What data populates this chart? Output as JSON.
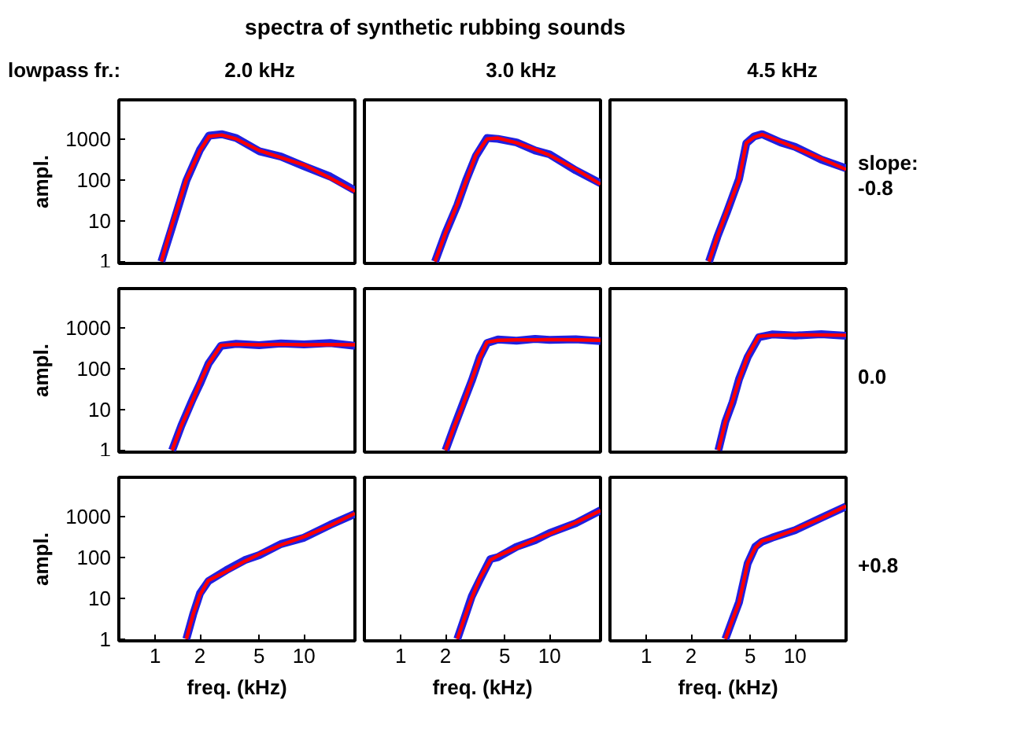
{
  "chart_data": [
    {
      "type": "line",
      "subtitle": "2.0 kHz",
      "annotations": [
        "lowpass fr.:"
      ],
      "ylabel": "ampl.",
      "log": "xy",
      "xlim": [
        0.57,
        22
      ],
      "ylim": [
        0.9,
        9000
      ],
      "xticks": [
        1,
        2,
        5,
        10
      ],
      "yticks": [
        1,
        10,
        100,
        1000
      ],
      "tick_labels": "y",
      "x": [
        1.1,
        1.3,
        1.62,
        2.0,
        2.3,
        2.8,
        3.5,
        5,
        7,
        10,
        15,
        22
      ],
      "series": [
        {
          "color": "#2020e0",
          "values": [
            1,
            7,
            95,
            540,
            1200,
            1300,
            1050,
            500,
            370,
            215,
            120,
            55
          ]
        },
        {
          "color": "#ff0000",
          "values": [
            1,
            8,
            100,
            520,
            1150,
            1250,
            1000,
            520,
            350,
            230,
            110,
            52
          ]
        }
      ]
    },
    {
      "type": "line",
      "title": "spectra of synthetic rubbing sounds",
      "subtitle": "3.0 kHz",
      "log": "xy",
      "xlim": [
        0.57,
        22
      ],
      "ylim": [
        0.9,
        9000
      ],
      "xticks": [
        1,
        2,
        5,
        10
      ],
      "yticks": [
        1,
        10,
        100,
        1000
      ],
      "tick_labels": false,
      "x": [
        1.7,
        2.0,
        2.4,
        2.77,
        3.2,
        3.8,
        4.5,
        6,
        8,
        10,
        15,
        22
      ],
      "series": [
        {
          "color": "#2020e0",
          "values": [
            1,
            5,
            24,
            105,
            380,
            1050,
            1000,
            820,
            520,
            420,
            170,
            82
          ]
        },
        {
          "color": "#ff0000",
          "values": [
            1,
            5,
            25,
            100,
            400,
            1000,
            1050,
            800,
            550,
            400,
            180,
            78
          ]
        }
      ]
    },
    {
      "type": "line",
      "subtitle": "4.5 kHz",
      "annotations": [
        "slope:",
        "-0.8"
      ],
      "log": "xy",
      "xlim": [
        0.57,
        22
      ],
      "ylim": [
        0.9,
        9000
      ],
      "xticks": [
        1,
        2,
        5,
        10
      ],
      "yticks": [
        1,
        10,
        100,
        1000
      ],
      "tick_labels": false,
      "x": [
        2.64,
        3.0,
        3.5,
        4.2,
        4.7,
        5.3,
        6.0,
        8,
        10,
        15,
        22
      ],
      "series": [
        {
          "color": "#2020e0",
          "values": [
            1,
            4,
            17,
            105,
            780,
            1150,
            1300,
            820,
            640,
            310,
            190
          ]
        },
        {
          "color": "#ff0000",
          "values": [
            1,
            4,
            18,
            100,
            800,
            1100,
            1280,
            850,
            610,
            330,
            178
          ]
        }
      ]
    },
    {
      "type": "line",
      "ylabel": "ampl.",
      "log": "xy",
      "xlim": [
        0.57,
        22
      ],
      "ylim": [
        0.9,
        9000
      ],
      "xticks": [
        1,
        2,
        5,
        10
      ],
      "yticks": [
        1,
        10,
        100,
        1000
      ],
      "tick_labels": "y",
      "x": [
        1.3,
        1.5,
        1.79,
        2.0,
        2.28,
        2.77,
        3.5,
        5,
        7,
        10,
        15,
        22
      ],
      "series": [
        {
          "color": "#2020e0",
          "values": [
            1,
            4,
            18,
            42,
            130,
            360,
            400,
            370,
            410,
            390,
            420,
            360
          ]
        },
        {
          "color": "#ff0000",
          "values": [
            1,
            4,
            17,
            45,
            128,
            370,
            390,
            380,
            390,
            380,
            385,
            380
          ]
        }
      ]
    },
    {
      "type": "line",
      "log": "xy",
      "xlim": [
        0.57,
        22
      ],
      "ylim": [
        0.9,
        9000
      ],
      "xticks": [
        1,
        2,
        5,
        10
      ],
      "yticks": [
        1,
        10,
        100,
        1000
      ],
      "tick_labels": false,
      "x": [
        2.0,
        2.3,
        2.6,
        3.0,
        3.4,
        3.8,
        4.5,
        6,
        8,
        10,
        15,
        22
      ],
      "series": [
        {
          "color": "#2020e0",
          "values": [
            1,
            4,
            13,
            50,
            190,
            420,
            510,
            480,
            530,
            500,
            520,
            470
          ]
        },
        {
          "color": "#ff0000",
          "values": [
            1,
            4,
            12,
            52,
            180,
            440,
            490,
            500,
            500,
            510,
            500,
            490
          ]
        }
      ]
    },
    {
      "type": "line",
      "annotations": [
        "0.0"
      ],
      "log": "xy",
      "xlim": [
        0.57,
        22
      ],
      "ylim": [
        0.9,
        9000
      ],
      "xticks": [
        1,
        2,
        5,
        10
      ],
      "yticks": [
        1,
        10,
        100,
        1000
      ],
      "tick_labels": false,
      "x": [
        3.05,
        3.4,
        3.8,
        4.2,
        4.8,
        5.7,
        7,
        10,
        15,
        22
      ],
      "series": [
        {
          "color": "#2020e0",
          "values": [
            1,
            5,
            15,
            55,
            190,
            580,
            680,
            640,
            690,
            630
          ]
        },
        {
          "color": "#ff0000",
          "values": [
            1,
            5,
            16,
            52,
            200,
            610,
            650,
            660,
            660,
            650
          ]
        }
      ]
    },
    {
      "type": "line",
      "ylabel": "ampl.",
      "xlabel": "freq. (kHz)",
      "log": "xy",
      "xlim": [
        0.57,
        22
      ],
      "ylim": [
        0.9,
        9000
      ],
      "xticks": [
        1,
        2,
        5,
        10
      ],
      "yticks": [
        1,
        10,
        100,
        1000
      ],
      "x": [
        1.62,
        1.8,
        2.0,
        2.28,
        3,
        4,
        5,
        7,
        10,
        15,
        22
      ],
      "series": [
        {
          "color": "#2020e0",
          "values": [
            1,
            4,
            13,
            26,
            48,
            85,
            112,
            210,
            300,
            620,
            1150
          ]
        },
        {
          "color": "#ff0000",
          "values": [
            1,
            4,
            12,
            27,
            45,
            80,
            118,
            200,
            316,
            600,
            1180
          ]
        }
      ]
    },
    {
      "type": "line",
      "xlabel": "freq. (kHz)",
      "log": "xy",
      "xlim": [
        0.57,
        22
      ],
      "ylim": [
        0.9,
        9000
      ],
      "xticks": [
        1,
        2,
        5,
        10
      ],
      "yticks": [
        1,
        10,
        100,
        1000
      ],
      "tick_labels": "x",
      "x": [
        2.4,
        2.7,
        3.0,
        3.4,
        4.0,
        4.5,
        6,
        8,
        10,
        15,
        22
      ],
      "series": [
        {
          "color": "#2020e0",
          "values": [
            1,
            3.5,
            11,
            28,
            90,
            100,
            180,
            260,
            390,
            680,
            1400
          ]
        },
        {
          "color": "#ff0000",
          "values": [
            1,
            3.5,
            10,
            30,
            85,
            108,
            170,
            270,
            370,
            700,
            1390
          ]
        }
      ]
    },
    {
      "type": "line",
      "xlabel": "freq. (kHz)",
      "annotations": [
        "+0.8"
      ],
      "log": "xy",
      "xlim": [
        0.57,
        22
      ],
      "ylim": [
        0.9,
        9000
      ],
      "xticks": [
        1,
        2,
        5,
        10
      ],
      "yticks": [
        1,
        10,
        100,
        1000
      ],
      "tick_labels": "x",
      "x": [
        3.4,
        3.8,
        4.2,
        4.8,
        5.4,
        6.0,
        7,
        10,
        15,
        22
      ],
      "series": [
        {
          "color": "#2020e0",
          "values": [
            1,
            3,
            8,
            70,
            180,
            240,
            300,
            460,
            920,
            1750
          ]
        },
        {
          "color": "#ff0000",
          "values": [
            1,
            3,
            7.8,
            72,
            170,
            250,
            290,
            475,
            900,
            1780
          ]
        }
      ]
    }
  ]
}
